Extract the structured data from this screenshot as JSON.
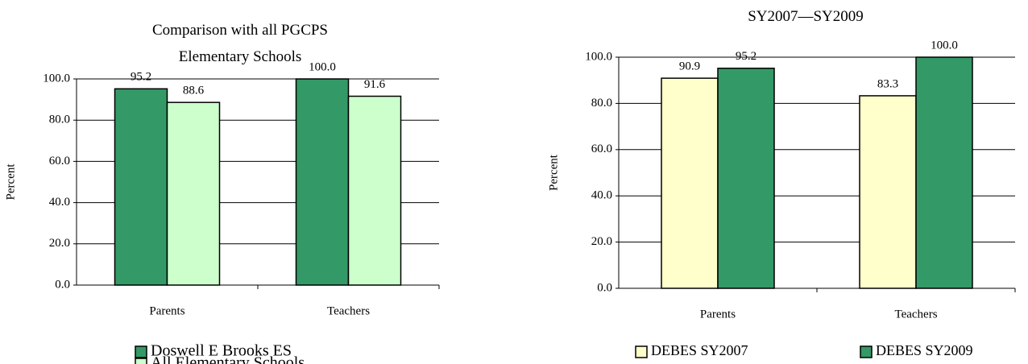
{
  "chart_data": [
    {
      "type": "bar",
      "title": "Comparison with all PGCPS Elementary Schools",
      "y_label": "Percent",
      "categories": [
        "Parents",
        "Teachers"
      ],
      "series": [
        {
          "name": "Doswell E Brooks ES",
          "color": "#339966",
          "values": [
            95.2,
            100.0
          ],
          "value_labels": [
            "95.2",
            "100.0"
          ]
        },
        {
          "name": "All Elementary Schools",
          "color": "#ccffcc",
          "values": [
            88.6,
            91.6
          ],
          "value_labels": [
            "88.6",
            "91.6"
          ]
        }
      ],
      "ylim": [
        0,
        100
      ],
      "yticks": [
        {
          "value": 0,
          "label": "0.0"
        },
        {
          "value": 20,
          "label": "20.0"
        },
        {
          "value": 40,
          "label": "40.0"
        },
        {
          "value": 60,
          "label": "60.0"
        },
        {
          "value": 80,
          "label": "80.0"
        },
        {
          "value": 100,
          "label": "100.0"
        }
      ],
      "grid": true
    },
    {
      "type": "bar",
      "title": "SY2007—SY2009",
      "y_label": "Percent",
      "categories": [
        "Parents",
        "Teachers"
      ],
      "series": [
        {
          "name": "DEBES SY2007",
          "color": "#ffffcc",
          "values": [
            90.9,
            83.3
          ],
          "value_labels": [
            "90.9",
            "83.3"
          ]
        },
        {
          "name": "DEBES SY2009",
          "color": "#339966",
          "values": [
            95.2,
            100.0
          ],
          "value_labels": [
            "95.2",
            "100.0"
          ]
        }
      ],
      "ylim": [
        0,
        100
      ],
      "yticks": [
        {
          "value": 0,
          "label": "0.0"
        },
        {
          "value": 20,
          "label": "20.0"
        },
        {
          "value": 40,
          "label": "40.0"
        },
        {
          "value": 60,
          "label": "60.0"
        },
        {
          "value": 80,
          "label": "80.0"
        },
        {
          "value": 100,
          "label": "100.0"
        }
      ],
      "grid": true
    }
  ]
}
